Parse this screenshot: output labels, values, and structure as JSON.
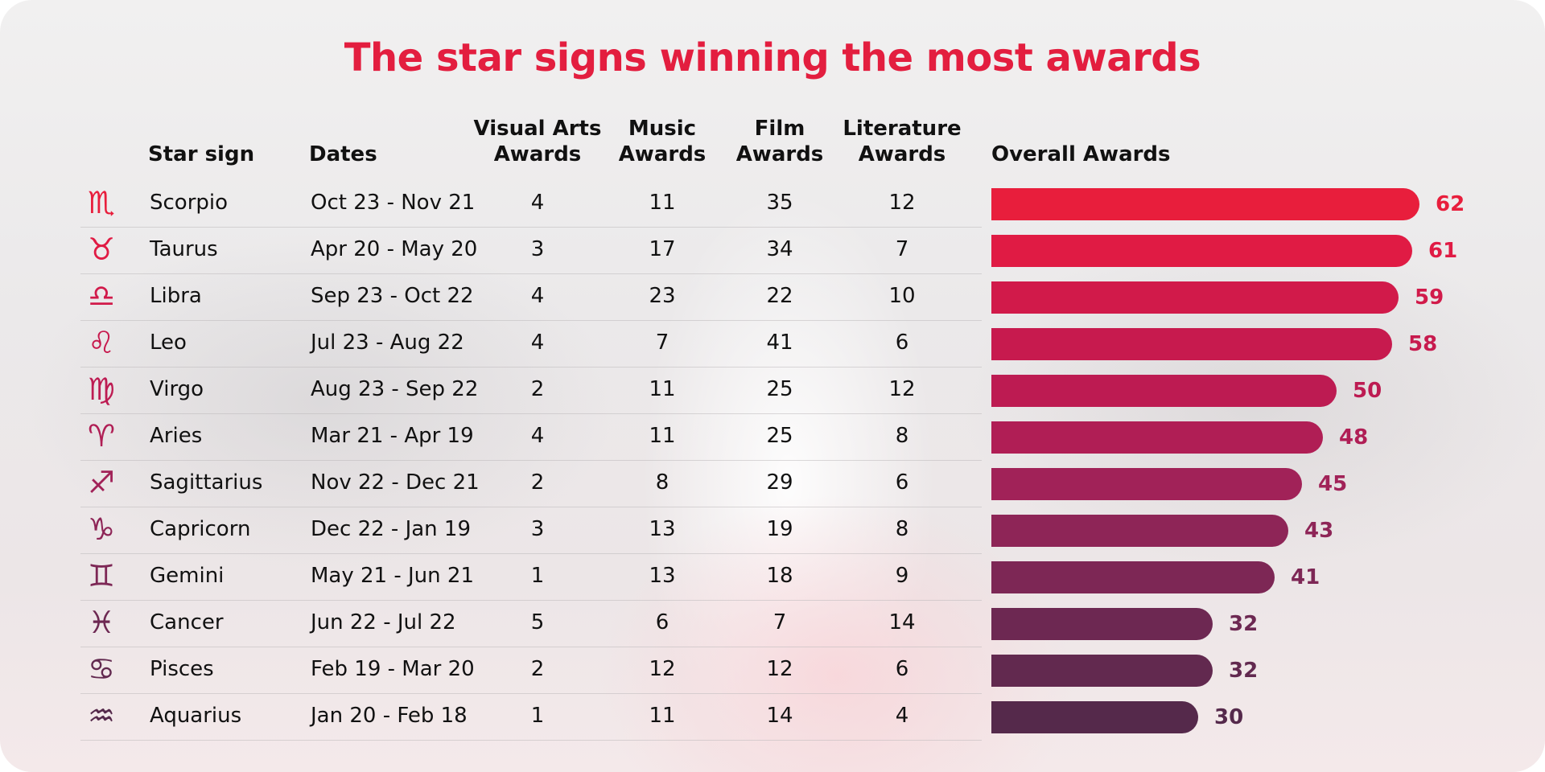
{
  "title": "The star signs winning the most awards",
  "headers": {
    "star_sign": "Star sign",
    "dates": "Dates",
    "visual_arts_1": "Visual Arts",
    "visual_arts_2": "Awards",
    "music_1": "Music",
    "music_2": "Awards",
    "film_1": "Film",
    "film_2": "Awards",
    "literature_1": "Literature",
    "literature_2": "Awards",
    "overall": "Overall Awards"
  },
  "rows": [
    {
      "icon": "scorpio-icon",
      "glyph": "♏",
      "sign": "Scorpio",
      "dates": "Oct 23 - Nov 21",
      "visual_arts": "4",
      "music": "11",
      "film": "35",
      "literature": "12",
      "overall": "62",
      "color": "#e81e3c"
    },
    {
      "icon": "taurus-icon",
      "glyph": "♉",
      "sign": "Taurus",
      "dates": "Apr 20 - May 20",
      "visual_arts": "3",
      "music": "17",
      "film": "34",
      "literature": "7",
      "overall": "61",
      "color": "#e01b44"
    },
    {
      "icon": "libra-icon",
      "glyph": "♎",
      "sign": "Libra",
      "dates": "Sep 23 - Oct 22",
      "visual_arts": "4",
      "music": "23",
      "film": "22",
      "literature": "10",
      "overall": "59",
      "color": "#d11a4a"
    },
    {
      "icon": "leo-icon",
      "glyph": "♌",
      "sign": "Leo",
      "dates": "Jul 23 - Aug 22",
      "visual_arts": "4",
      "music": "7",
      "film": "41",
      "literature": "6",
      "overall": "58",
      "color": "#c71a4e"
    },
    {
      "icon": "virgo-icon",
      "glyph": "♍",
      "sign": "Virgo",
      "dates": "Aug 23 - Sep 22",
      "visual_arts": "2",
      "music": "11",
      "film": "25",
      "literature": "12",
      "overall": "50",
      "color": "#bd1b52"
    },
    {
      "icon": "aries-icon",
      "glyph": "♈",
      "sign": "Aries",
      "dates": "Mar 21 - Apr 19",
      "visual_arts": "4",
      "music": "11",
      "film": "25",
      "literature": "8",
      "overall": "48",
      "color": "#b01e55"
    },
    {
      "icon": "sagittarius-icon",
      "glyph": "♐",
      "sign": "Sagittarius",
      "dates": "Nov 22 - Dec 21",
      "visual_arts": "2",
      "music": "8",
      "film": "29",
      "literature": "6",
      "overall": "45",
      "color": "#a12258"
    },
    {
      "icon": "capricorn-icon",
      "glyph": "♑",
      "sign": "Capricorn",
      "dates": "Dec 22 - Jan 19",
      "visual_arts": "3",
      "music": "13",
      "film": "19",
      "literature": "8",
      "overall": "43",
      "color": "#8e2557"
    },
    {
      "icon": "gemini-icon",
      "glyph": "♊",
      "sign": "Gemini",
      "dates": "May 21 - Jun 21",
      "visual_arts": "1",
      "music": "13",
      "film": "18",
      "literature": "9",
      "overall": "41",
      "color": "#7d2755"
    },
    {
      "icon": "pisces-icon",
      "glyph": "♓",
      "sign": "Cancer",
      "dates": "Jun 22 - Jul 22",
      "visual_arts": "5",
      "music": "6",
      "film": "7",
      "literature": "14",
      "overall": "32",
      "color": "#6d2852"
    },
    {
      "icon": "cancer-icon",
      "glyph": "♋",
      "sign": "Pisces",
      "dates": "Feb 19 - Mar 20",
      "visual_arts": "2",
      "music": "12",
      "film": "12",
      "literature": "6",
      "overall": "32",
      "color": "#62294f"
    },
    {
      "icon": "aquarius-icon",
      "glyph": "♒",
      "sign": "Aquarius",
      "dates": "Jan 20 - Feb 18",
      "visual_arts": "1",
      "music": "11",
      "film": "14",
      "literature": "4",
      "overall": "30",
      "color": "#55294b"
    }
  ],
  "chart_data": {
    "type": "bar",
    "orientation": "horizontal",
    "title": "The star signs winning the most awards",
    "xlabel": "",
    "ylabel": "",
    "categories": [
      "Scorpio",
      "Taurus",
      "Libra",
      "Leo",
      "Virgo",
      "Aries",
      "Sagittarius",
      "Capricorn",
      "Gemini",
      "Cancer",
      "Pisces",
      "Aquarius"
    ],
    "series": [
      {
        "name": "Overall Awards",
        "values": [
          62,
          61,
          59,
          58,
          50,
          48,
          45,
          43,
          41,
          32,
          32,
          30
        ]
      },
      {
        "name": "Visual Arts Awards",
        "values": [
          4,
          3,
          4,
          4,
          2,
          4,
          2,
          3,
          1,
          5,
          2,
          1
        ]
      },
      {
        "name": "Music Awards",
        "values": [
          11,
          17,
          23,
          7,
          11,
          11,
          8,
          13,
          13,
          6,
          12,
          11
        ]
      },
      {
        "name": "Film Awards",
        "values": [
          35,
          34,
          22,
          41,
          25,
          25,
          29,
          19,
          18,
          7,
          12,
          14
        ]
      },
      {
        "name": "Literature Awards",
        "values": [
          12,
          7,
          10,
          6,
          12,
          8,
          6,
          8,
          9,
          14,
          6,
          4
        ]
      }
    ],
    "dates": [
      "Oct 23 - Nov 21",
      "Apr 20 - May 20",
      "Sep 23 - Oct 22",
      "Jul 23 - Aug 22",
      "Aug 23 - Sep 22",
      "Mar 21 - Apr 19",
      "Nov 22 - Dec 21",
      "Dec 22 - Jan 19",
      "May 21 - Jun 21",
      "Jun 22 - Jul 22",
      "Feb 19 - Mar 20",
      "Jan 20 - Feb 18"
    ],
    "grid": false,
    "legend": "none",
    "data_labels": true,
    "xlim": [
      0,
      62
    ],
    "colors": [
      "#e81e3c",
      "#e01b44",
      "#d11a4a",
      "#c71a4e",
      "#bd1b52",
      "#b01e55",
      "#a12258",
      "#8e2557",
      "#7d2755",
      "#6d2852",
      "#62294f",
      "#55294b"
    ]
  }
}
